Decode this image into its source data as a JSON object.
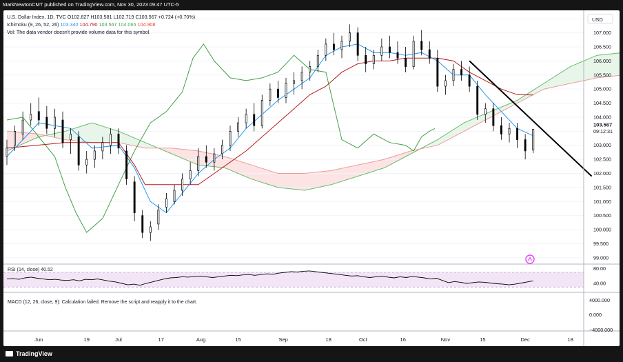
{
  "header": {
    "publish_line": "MarkNewtonCMT published on TradingView.com, Nov 30, 2023 09:47 UTC-5"
  },
  "legend": {
    "symbol_line": "U.S. Dollar Index, 1D, TVC  O102.827  H103.581  L102.719  C103.567  +0.724 (+0.70%)",
    "ichimoku_label": "Ichimoku (9, 26, 52, 26)",
    "ichimoku_values": [
      {
        "text": "103.340",
        "color": "#2196f3"
      },
      {
        "text": "104.790",
        "color": "#b71c1c"
      },
      {
        "text": "103.567",
        "color": "#43a047"
      },
      {
        "text": "104.065",
        "color": "#4caf50"
      },
      {
        "text": "104.908",
        "color": "#f44336"
      }
    ],
    "vol_line": "Vol: The data vendor doesn't provide volume data for this symbol."
  },
  "price_axis": {
    "currency": "USD",
    "ticks": [
      "107.500",
      "107.000",
      "106.500",
      "106.000",
      "105.500",
      "105.000",
      "104.500",
      "104.000",
      "103.500",
      "103.000",
      "102.500",
      "102.000",
      "101.500",
      "101.000",
      "100.500",
      "100.000",
      "99.500",
      "99.000"
    ],
    "last_price": "103.567",
    "countdown": "09:12:31"
  },
  "time_axis": {
    "labels": [
      "Jun",
      "19",
      "Jul",
      "17",
      "Aug",
      "15",
      "Sep",
      "18",
      "Oct",
      "16",
      "Nov",
      "15",
      "Dec",
      "18"
    ]
  },
  "rsi": {
    "label": "RSI (14, close)",
    "value": "40.52",
    "ticks": [
      "80.00",
      "40.00"
    ],
    "values": [
      52,
      53,
      51,
      55,
      57,
      54,
      52,
      50,
      51,
      49,
      48,
      50,
      47,
      51,
      50,
      52,
      49,
      46,
      44,
      40,
      36,
      38,
      35,
      40,
      44,
      48,
      52,
      55,
      56,
      58,
      57,
      59,
      60,
      58,
      56,
      58,
      60,
      62,
      61,
      63,
      64,
      62,
      64,
      66,
      65,
      68,
      70,
      72,
      71,
      73,
      74,
      72,
      70,
      68,
      66,
      64,
      62,
      60,
      61,
      58,
      56,
      58,
      60,
      57,
      55,
      58,
      56,
      59,
      57,
      55,
      52,
      54,
      48,
      42,
      45,
      43,
      40,
      42,
      44,
      43,
      41,
      39,
      38,
      36,
      38,
      41,
      44,
      47
    ]
  },
  "macd": {
    "label": "MACD (12, 26, close, 9): Calculation failed. Remove the script and reapply it to the chart.",
    "ticks": [
      "4000.000",
      "0.000",
      "−4000.000"
    ]
  },
  "footer": {
    "brand": "TradingView"
  },
  "colors": {
    "up": "#ffffff",
    "down": "#000000",
    "tenkan": "#2196f3",
    "kijun": "#b71c1c",
    "lagging": "#43a047",
    "span_a": "#66bb6a",
    "span_b": "#ef9a9a",
    "cloud_bull": "#e8f5e9",
    "cloud_bear": "#fde4e4",
    "rsi_band": "#f3e5f5",
    "rsi_line": "#7e57c2"
  },
  "chart_data": {
    "type": "candlestick",
    "title": "U.S. Dollar Index, 1D, TVC",
    "ylim": [
      98.8,
      107.8
    ],
    "x_range_days": [
      -12,
      205
    ],
    "x_tick_days": [
      0,
      18,
      30,
      46,
      61,
      75,
      92,
      109,
      122,
      137,
      153,
      167,
      183,
      200
    ],
    "candles": [
      {
        "d": -12,
        "o": 102.6,
        "h": 103.2,
        "l": 102.3,
        "c": 102.9
      },
      {
        "d": -9,
        "o": 103.0,
        "h": 103.7,
        "l": 102.8,
        "c": 103.5
      },
      {
        "d": -6,
        "o": 103.4,
        "h": 104.2,
        "l": 103.2,
        "c": 103.9
      },
      {
        "d": -3,
        "o": 103.9,
        "h": 104.5,
        "l": 103.7,
        "c": 104.1
      },
      {
        "d": 0,
        "o": 104.2,
        "h": 104.7,
        "l": 103.7,
        "c": 103.9
      },
      {
        "d": 3,
        "o": 104.0,
        "h": 104.4,
        "l": 103.4,
        "c": 103.6
      },
      {
        "d": 6,
        "o": 103.6,
        "h": 104.3,
        "l": 103.3,
        "c": 104.0
      },
      {
        "d": 9,
        "o": 103.9,
        "h": 104.2,
        "l": 102.9,
        "c": 103.1
      },
      {
        "d": 12,
        "o": 103.2,
        "h": 103.6,
        "l": 102.7,
        "c": 103.4
      },
      {
        "d": 15,
        "o": 103.3,
        "h": 103.5,
        "l": 102.1,
        "c": 102.3
      },
      {
        "d": 18,
        "o": 102.3,
        "h": 102.8,
        "l": 102.0,
        "c": 102.5
      },
      {
        "d": 21,
        "o": 102.5,
        "h": 103.0,
        "l": 102.2,
        "c": 102.8
      },
      {
        "d": 24,
        "o": 102.8,
        "h": 103.3,
        "l": 102.5,
        "c": 103.1
      },
      {
        "d": 27,
        "o": 103.0,
        "h": 103.6,
        "l": 102.7,
        "c": 103.4
      },
      {
        "d": 30,
        "o": 103.4,
        "h": 103.6,
        "l": 102.7,
        "c": 102.9
      },
      {
        "d": 33,
        "o": 102.8,
        "h": 103.0,
        "l": 101.6,
        "c": 101.8
      },
      {
        "d": 36,
        "o": 101.7,
        "h": 101.9,
        "l": 100.3,
        "c": 100.6
      },
      {
        "d": 39,
        "o": 100.5,
        "h": 100.7,
        "l": 99.7,
        "c": 99.9
      },
      {
        "d": 42,
        "o": 99.9,
        "h": 100.3,
        "l": 99.6,
        "c": 100.1
      },
      {
        "d": 45,
        "o": 100.2,
        "h": 100.9,
        "l": 100.0,
        "c": 100.7
      },
      {
        "d": 48,
        "o": 100.8,
        "h": 101.3,
        "l": 100.6,
        "c": 101.1
      },
      {
        "d": 51,
        "o": 101.0,
        "h": 101.6,
        "l": 100.9,
        "c": 101.4
      },
      {
        "d": 54,
        "o": 101.4,
        "h": 102.0,
        "l": 101.2,
        "c": 101.8
      },
      {
        "d": 57,
        "o": 101.8,
        "h": 102.4,
        "l": 101.6,
        "c": 102.1
      },
      {
        "d": 60,
        "o": 102.1,
        "h": 102.9,
        "l": 101.9,
        "c": 102.6
      },
      {
        "d": 63,
        "o": 102.6,
        "h": 103.0,
        "l": 102.2,
        "c": 102.4
      },
      {
        "d": 66,
        "o": 102.4,
        "h": 102.9,
        "l": 102.1,
        "c": 102.7
      },
      {
        "d": 69,
        "o": 102.7,
        "h": 103.2,
        "l": 102.5,
        "c": 103.0
      },
      {
        "d": 72,
        "o": 103.0,
        "h": 103.7,
        "l": 102.8,
        "c": 103.5
      },
      {
        "d": 75,
        "o": 103.5,
        "h": 104.0,
        "l": 103.3,
        "c": 103.8
      },
      {
        "d": 78,
        "o": 103.8,
        "h": 104.3,
        "l": 103.6,
        "c": 104.1
      },
      {
        "d": 81,
        "o": 104.1,
        "h": 104.5,
        "l": 103.5,
        "c": 103.7
      },
      {
        "d": 84,
        "o": 103.7,
        "h": 104.8,
        "l": 103.6,
        "c": 104.6
      },
      {
        "d": 87,
        "o": 104.6,
        "h": 105.2,
        "l": 104.4,
        "c": 105.0
      },
      {
        "d": 90,
        "o": 105.0,
        "h": 105.3,
        "l": 104.5,
        "c": 104.7
      },
      {
        "d": 93,
        "o": 104.7,
        "h": 105.4,
        "l": 104.5,
        "c": 105.2
      },
      {
        "d": 96,
        "o": 105.2,
        "h": 105.6,
        "l": 104.8,
        "c": 105.3
      },
      {
        "d": 99,
        "o": 105.3,
        "h": 105.8,
        "l": 105.0,
        "c": 105.6
      },
      {
        "d": 102,
        "o": 105.6,
        "h": 106.0,
        "l": 105.3,
        "c": 105.8
      },
      {
        "d": 105,
        "o": 105.8,
        "h": 106.4,
        "l": 105.6,
        "c": 106.2
      },
      {
        "d": 108,
        "o": 106.2,
        "h": 106.8,
        "l": 106.0,
        "c": 106.6
      },
      {
        "d": 111,
        "o": 106.6,
        "h": 107.0,
        "l": 106.2,
        "c": 106.4
      },
      {
        "d": 114,
        "o": 106.4,
        "h": 106.9,
        "l": 106.1,
        "c": 106.7
      },
      {
        "d": 117,
        "o": 106.7,
        "h": 107.3,
        "l": 106.5,
        "c": 107.0
      },
      {
        "d": 120,
        "o": 107.0,
        "h": 107.2,
        "l": 106.0,
        "c": 106.2
      },
      {
        "d": 123,
        "o": 106.2,
        "h": 106.5,
        "l": 105.6,
        "c": 105.9
      },
      {
        "d": 126,
        "o": 105.9,
        "h": 106.4,
        "l": 105.7,
        "c": 106.2
      },
      {
        "d": 129,
        "o": 106.2,
        "h": 106.8,
        "l": 106.0,
        "c": 106.5
      },
      {
        "d": 132,
        "o": 106.5,
        "h": 106.9,
        "l": 106.1,
        "c": 106.3
      },
      {
        "d": 135,
        "o": 106.3,
        "h": 106.7,
        "l": 105.9,
        "c": 106.1
      },
      {
        "d": 138,
        "o": 106.1,
        "h": 106.5,
        "l": 105.6,
        "c": 105.8
      },
      {
        "d": 141,
        "o": 105.8,
        "h": 106.9,
        "l": 105.7,
        "c": 106.7
      },
      {
        "d": 144,
        "o": 106.7,
        "h": 107.1,
        "l": 106.2,
        "c": 106.4
      },
      {
        "d": 147,
        "o": 106.4,
        "h": 106.7,
        "l": 105.9,
        "c": 106.1
      },
      {
        "d": 150,
        "o": 106.1,
        "h": 106.4,
        "l": 104.9,
        "c": 105.1
      },
      {
        "d": 153,
        "o": 105.1,
        "h": 105.5,
        "l": 104.8,
        "c": 105.3
      },
      {
        "d": 156,
        "o": 105.3,
        "h": 105.9,
        "l": 105.1,
        "c": 105.7
      },
      {
        "d": 159,
        "o": 105.7,
        "h": 106.0,
        "l": 105.3,
        "c": 105.5
      },
      {
        "d": 162,
        "o": 105.5,
        "h": 105.8,
        "l": 104.9,
        "c": 105.1
      },
      {
        "d": 165,
        "o": 105.1,
        "h": 105.3,
        "l": 103.9,
        "c": 104.1
      },
      {
        "d": 168,
        "o": 104.1,
        "h": 104.5,
        "l": 103.8,
        "c": 104.3
      },
      {
        "d": 171,
        "o": 104.3,
        "h": 104.5,
        "l": 103.5,
        "c": 103.7
      },
      {
        "d": 174,
        "o": 103.7,
        "h": 104.0,
        "l": 103.2,
        "c": 103.4
      },
      {
        "d": 177,
        "o": 103.4,
        "h": 103.8,
        "l": 103.1,
        "c": 103.6
      },
      {
        "d": 180,
        "o": 103.6,
        "h": 103.8,
        "l": 102.9,
        "c": 103.2
      },
      {
        "d": 183,
        "o": 103.2,
        "h": 103.4,
        "l": 102.5,
        "c": 102.8
      },
      {
        "d": 186,
        "o": 102.83,
        "h": 103.58,
        "l": 102.72,
        "c": 103.57
      }
    ],
    "tenkan": [
      [
        -12,
        102.6
      ],
      [
        0,
        103.8
      ],
      [
        12,
        103.6
      ],
      [
        20,
        102.9
      ],
      [
        30,
        103.0
      ],
      [
        36,
        102.2
      ],
      [
        42,
        101.0
      ],
      [
        48,
        100.6
      ],
      [
        54,
        101.3
      ],
      [
        60,
        102.0
      ],
      [
        66,
        102.5
      ],
      [
        72,
        102.9
      ],
      [
        78,
        103.6
      ],
      [
        84,
        104.1
      ],
      [
        90,
        104.6
      ],
      [
        96,
        105.0
      ],
      [
        102,
        105.4
      ],
      [
        108,
        106.2
      ],
      [
        114,
        106.5
      ],
      [
        120,
        106.6
      ],
      [
        126,
        106.3
      ],
      [
        132,
        106.3
      ],
      [
        138,
        106.2
      ],
      [
        144,
        106.3
      ],
      [
        150,
        106.0
      ],
      [
        156,
        105.5
      ],
      [
        162,
        105.5
      ],
      [
        168,
        104.8
      ],
      [
        174,
        104.2
      ],
      [
        180,
        103.6
      ],
      [
        186,
        103.34
      ]
    ],
    "kijun": [
      [
        -12,
        102.9
      ],
      [
        10,
        103.1
      ],
      [
        30,
        103.1
      ],
      [
        36,
        102.3
      ],
      [
        40,
        101.6
      ],
      [
        60,
        101.6
      ],
      [
        66,
        102.0
      ],
      [
        72,
        102.4
      ],
      [
        78,
        102.8
      ],
      [
        84,
        103.3
      ],
      [
        90,
        103.8
      ],
      [
        96,
        104.3
      ],
      [
        102,
        104.8
      ],
      [
        108,
        105.1
      ],
      [
        114,
        105.6
      ],
      [
        120,
        105.9
      ],
      [
        126,
        106.0
      ],
      [
        132,
        106.0
      ],
      [
        138,
        106.1
      ],
      [
        144,
        106.1
      ],
      [
        150,
        106.1
      ],
      [
        156,
        106.0
      ],
      [
        162,
        105.6
      ],
      [
        168,
        105.3
      ],
      [
        174,
        105.0
      ],
      [
        180,
        104.8
      ],
      [
        186,
        104.79
      ]
    ],
    "lagging": [
      [
        -12,
        103.9
      ],
      [
        -6,
        104.0
      ],
      [
        0,
        103.3
      ],
      [
        6,
        102.6
      ],
      [
        10,
        101.5
      ],
      [
        14,
        100.6
      ],
      [
        18,
        99.9
      ],
      [
        24,
        100.4
      ],
      [
        30,
        101.6
      ],
      [
        36,
        102.8
      ],
      [
        42,
        103.8
      ],
      [
        48,
        104.2
      ],
      [
        54,
        104.9
      ],
      [
        58,
        106.1
      ],
      [
        62,
        106.6
      ],
      [
        66,
        106.0
      ],
      [
        72,
        105.4
      ],
      [
        78,
        105.3
      ],
      [
        84,
        105.4
      ],
      [
        90,
        105.6
      ],
      [
        96,
        106.2
      ],
      [
        102,
        105.7
      ],
      [
        108,
        105.6
      ],
      [
        114,
        103.2
      ],
      [
        120,
        102.9
      ],
      [
        126,
        103.4
      ],
      [
        132,
        103.1
      ],
      [
        138,
        103.0
      ],
      [
        141,
        102.8
      ],
      [
        144,
        103.3
      ],
      [
        147,
        103.5
      ],
      [
        149,
        103.6
      ]
    ],
    "span_a": [
      [
        -12,
        102.8
      ],
      [
        0,
        103.3
      ],
      [
        10,
        103.5
      ],
      [
        20,
        103.8
      ],
      [
        30,
        103.5
      ],
      [
        40,
        103.1
      ],
      [
        50,
        102.7
      ],
      [
        60,
        102.3
      ],
      [
        70,
        102.2
      ],
      [
        80,
        101.8
      ],
      [
        90,
        101.5
      ],
      [
        100,
        101.4
      ],
      [
        110,
        101.6
      ],
      [
        120,
        101.9
      ],
      [
        130,
        102.2
      ],
      [
        140,
        102.7
      ],
      [
        150,
        103.2
      ],
      [
        160,
        103.8
      ],
      [
        170,
        104.2
      ],
      [
        180,
        104.6
      ],
      [
        190,
        105.2
      ],
      [
        200,
        105.8
      ],
      [
        210,
        106.2
      ],
      [
        220,
        106.3
      ],
      [
        230,
        106.1
      ],
      [
        236,
        105.9
      ]
    ],
    "span_b": [
      [
        -12,
        103.5
      ],
      [
        0,
        103.4
      ],
      [
        10,
        103.2
      ],
      [
        20,
        103.1
      ],
      [
        30,
        103.1
      ],
      [
        40,
        102.9
      ],
      [
        50,
        102.9
      ],
      [
        60,
        102.8
      ],
      [
        70,
        102.6
      ],
      [
        80,
        102.3
      ],
      [
        90,
        102.0
      ],
      [
        100,
        102.0
      ],
      [
        110,
        102.1
      ],
      [
        120,
        102.3
      ],
      [
        130,
        102.5
      ],
      [
        140,
        102.8
      ],
      [
        150,
        103.0
      ],
      [
        160,
        103.5
      ],
      [
        170,
        104.0
      ],
      [
        180,
        104.5
      ],
      [
        190,
        105.0
      ],
      [
        200,
        105.2
      ],
      [
        210,
        105.4
      ],
      [
        220,
        105.5
      ],
      [
        230,
        105.7
      ],
      [
        236,
        105.8
      ]
    ],
    "trendline": [
      [
        162,
        106.0
      ],
      [
        208,
        101.9
      ]
    ]
  }
}
